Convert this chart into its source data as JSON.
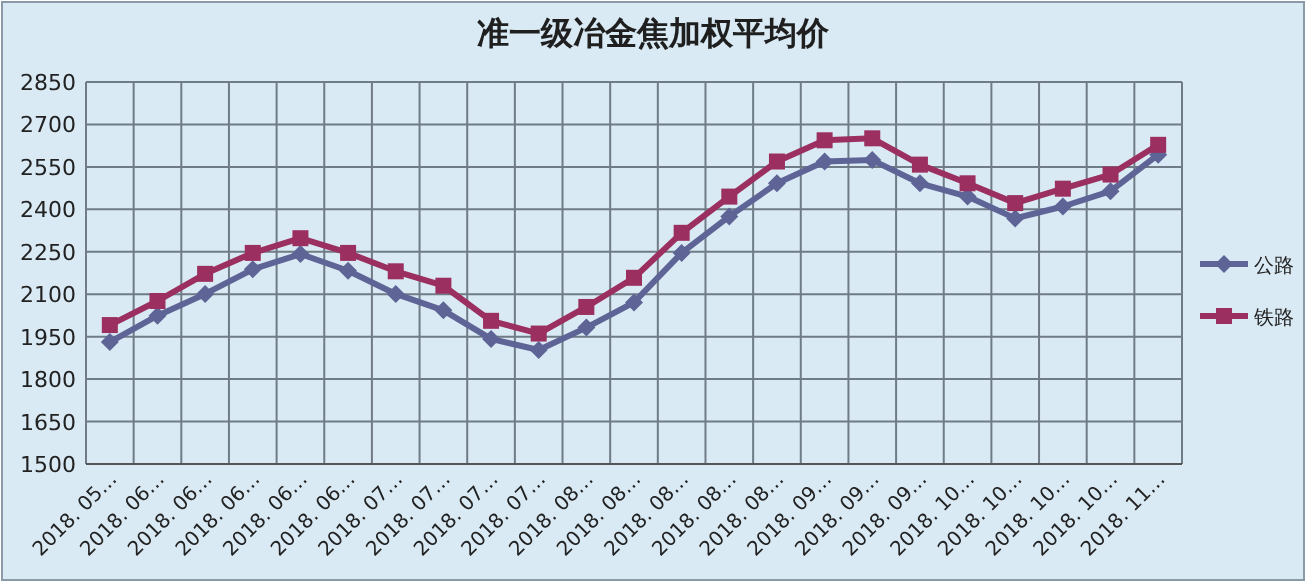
{
  "chart_data": {
    "type": "line",
    "title": "准一级冶金焦加权平均价",
    "categories": [
      "2018. 05…",
      "2018. 06…",
      "2018. 06…",
      "2018. 06…",
      "2018. 06…",
      "2018. 06…",
      "2018. 07…",
      "2018. 07…",
      "2018. 07…",
      "2018. 07…",
      "2018. 08…",
      "2018. 08…",
      "2018. 08…",
      "2018. 08…",
      "2018. 08…",
      "2018. 09…",
      "2018. 09…",
      "2018. 09…",
      "2018. 10…",
      "2018. 10…",
      "2018. 10…",
      "2018. 10…",
      "2018. 11…"
    ],
    "series": [
      {
        "name": "公路",
        "color": "#5e6496",
        "marker": "diamond",
        "values": [
          1931,
          2024,
          2101,
          2188,
          2242,
          2183,
          2101,
          2043,
          1942,
          1903,
          1982,
          2071,
          2246,
          2375,
          2492,
          2569,
          2574,
          2492,
          2445,
          2368,
          2410,
          2464,
          2593
        ]
      },
      {
        "name": "铁路",
        "color": "#9b2f5f",
        "marker": "square",
        "values": [
          1991,
          2076,
          2172,
          2246,
          2298,
          2246,
          2181,
          2130,
          2006,
          1961,
          2055,
          2158,
          2317,
          2445,
          2569,
          2644,
          2651,
          2558,
          2492,
          2422,
          2473,
          2523,
          2628
        ]
      }
    ],
    "ylim": [
      1500,
      2850
    ],
    "yticks": [
      1500,
      1650,
      1800,
      1950,
      2100,
      2250,
      2400,
      2550,
      2700,
      2850
    ],
    "grid": true,
    "legend": "right",
    "line_style": "solid"
  }
}
